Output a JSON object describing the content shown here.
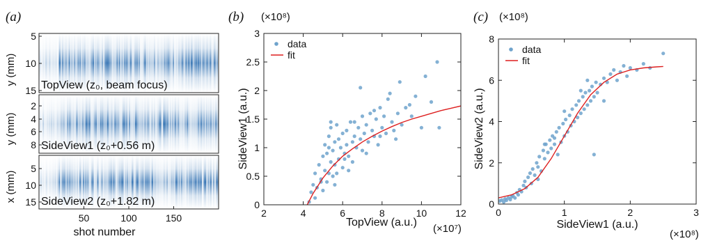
{
  "panel_labels": [
    "(a)",
    "(b)",
    "(c)"
  ],
  "colors": {
    "data": "#6fa3cc",
    "fit": "#dd1f1f",
    "map_dark": "#2166ac"
  },
  "chart_data": [
    {
      "type": "heatmap",
      "panel": "(a)",
      "xlabel": "shot number",
      "xticks": [
        "50",
        "100",
        "150"
      ],
      "xlim": [
        0,
        200
      ],
      "subplots": [
        {
          "label": "TopView (z₀, beam focus)",
          "ylabel": "y (mm)",
          "yticks": [
            "5",
            "10",
            "15"
          ],
          "ylim": [
            5,
            15
          ]
        },
        {
          "label": "SideView1 (z₀+0.56 m)",
          "ylabel": "y (mm)",
          "yticks": [
            "2",
            "4",
            "6",
            "8"
          ],
          "ylim": [
            1,
            9
          ]
        },
        {
          "label": "SideView2 (z₀+1.82 m)",
          "ylabel": "x (mm)",
          "yticks": [
            "5",
            "10",
            "15"
          ],
          "ylim": [
            1,
            18
          ]
        }
      ]
    },
    {
      "type": "scatter",
      "panel": "(b)",
      "xlabel": "TopView (a.u.)",
      "ylabel": "SideView1 (a.u.)",
      "x_exponent": "(×10⁷)",
      "y_exponent": "(×10⁸)",
      "xlim": [
        2,
        12
      ],
      "ylim": [
        0,
        3
      ],
      "xticks": [
        "2",
        "4",
        "6",
        "8",
        "10",
        "12"
      ],
      "yticks": [
        "0",
        "0.5",
        "1",
        "1.5",
        "2",
        "2.5",
        "3"
      ],
      "legend": {
        "position": "top-left",
        "entries": [
          "data",
          "fit"
        ]
      },
      "series": [
        {
          "name": "data",
          "x": [
            4.3,
            4.4,
            4.5,
            4.6,
            4.7,
            4.8,
            4.9,
            5.0,
            5.0,
            5.1,
            5.1,
            5.2,
            5.2,
            5.3,
            5.3,
            5.4,
            5.4,
            5.5,
            5.5,
            5.6,
            5.6,
            5.7,
            5.8,
            5.8,
            5.9,
            6.0,
            6.0,
            6.1,
            6.2,
            6.2,
            6.3,
            6.4,
            6.5,
            6.5,
            6.6,
            6.7,
            6.8,
            6.9,
            7.0,
            7.0,
            7.1,
            7.2,
            7.3,
            7.4,
            7.5,
            7.6,
            7.7,
            7.8,
            7.9,
            8.0,
            8.1,
            8.2,
            8.3,
            8.5,
            8.6,
            8.8,
            8.9,
            9.0,
            9.2,
            9.5,
            9.7,
            10.0,
            10.2,
            10.5,
            10.8,
            10.9,
            5.4,
            5.6,
            6.3,
            6.9,
            7.6,
            8.4,
            4.6,
            4.9,
            5.3,
            5.7,
            6.1,
            6.6,
            7.2,
            7.9,
            8.7,
            9.4
          ],
          "y": [
            0.05,
            0.22,
            0.35,
            0.55,
            0.3,
            0.7,
            0.45,
            0.85,
            0.25,
            0.6,
            1.05,
            0.4,
            0.9,
            1.2,
            0.55,
            0.75,
            1.35,
            0.95,
            0.5,
            1.1,
            0.7,
            1.4,
            0.8,
            1.15,
            1.0,
            0.65,
            1.25,
            0.9,
            1.3,
            1.05,
            0.85,
            1.45,
            1.1,
            0.75,
            1.2,
            1.0,
            1.35,
            1.15,
            1.55,
            0.95,
            1.25,
            1.4,
            1.1,
            1.6,
            1.3,
            1.2,
            1.5,
            1.05,
            1.7,
            1.35,
            1.55,
            1.25,
            1.85,
            1.45,
            1.3,
            1.6,
            2.15,
            1.4,
            1.7,
            1.55,
            1.9,
            1.35,
            2.25,
            1.8,
            2.5,
            1.35,
            1.45,
            0.35,
            0.6,
            2.05,
            1.65,
            1.95,
            0.12,
            0.4,
            1.0,
            0.55,
            0.8,
            1.45,
            0.9,
            1.2,
            1.15,
            1.75
          ]
        },
        {
          "name": "fit",
          "x": [
            4.2,
            4.5,
            5.0,
            5.5,
            6.0,
            6.5,
            7.0,
            7.5,
            8.0,
            8.5,
            9.0,
            9.5,
            10.0,
            10.5,
            11.0,
            11.5,
            12.0
          ],
          "y": [
            0.0,
            0.2,
            0.47,
            0.68,
            0.85,
            0.98,
            1.1,
            1.2,
            1.29,
            1.37,
            1.44,
            1.5,
            1.55,
            1.6,
            1.65,
            1.69,
            1.73
          ]
        }
      ]
    },
    {
      "type": "scatter",
      "panel": "(c)",
      "xlabel": "SideView1 (a.u.)",
      "ylabel": "SideView2 (a.u.)",
      "x_exponent": "(×10⁸)",
      "y_exponent": "(×10⁸)",
      "xlim": [
        0,
        3
      ],
      "ylim": [
        0,
        8
      ],
      "xticks": [
        "0",
        "1",
        "2",
        "3"
      ],
      "yticks": [
        "0",
        "2",
        "4",
        "6",
        "8"
      ],
      "legend": {
        "position": "top-left",
        "entries": [
          "data",
          "fit"
        ]
      },
      "series": [
        {
          "name": "data",
          "x": [
            0.02,
            0.05,
            0.08,
            0.1,
            0.12,
            0.15,
            0.18,
            0.2,
            0.22,
            0.25,
            0.28,
            0.3,
            0.32,
            0.35,
            0.38,
            0.4,
            0.42,
            0.45,
            0.48,
            0.5,
            0.52,
            0.55,
            0.58,
            0.6,
            0.62,
            0.65,
            0.68,
            0.7,
            0.72,
            0.75,
            0.78,
            0.8,
            0.82,
            0.85,
            0.88,
            0.9,
            0.92,
            0.95,
            0.98,
            1.0,
            1.02,
            1.05,
            1.08,
            1.1,
            1.12,
            1.15,
            1.18,
            1.2,
            1.22,
            1.25,
            1.28,
            1.3,
            1.32,
            1.35,
            1.38,
            1.4,
            1.42,
            1.45,
            1.48,
            1.5,
            1.55,
            1.6,
            1.65,
            1.7,
            1.75,
            1.8,
            1.85,
            1.9,
            1.95,
            2.0,
            2.1,
            2.2,
            2.3,
            2.5,
            0.6,
            0.7,
            0.85,
            1.0,
            1.25,
            1.35,
            1.45,
            1.6
          ],
          "y": [
            0.15,
            0.2,
            0.1,
            0.25,
            0.18,
            0.3,
            0.22,
            0.35,
            0.4,
            0.3,
            0.55,
            0.45,
            0.7,
            0.6,
            0.9,
            1.1,
            0.8,
            1.3,
            1.5,
            1.0,
            1.7,
            1.4,
            2.0,
            1.8,
            2.3,
            1.6,
            2.6,
            2.2,
            2.9,
            2.5,
            3.1,
            2.7,
            3.3,
            2.9,
            3.5,
            2.4,
            3.7,
            3.0,
            3.9,
            3.3,
            4.1,
            3.5,
            4.3,
            3.8,
            4.6,
            4.0,
            4.8,
            4.2,
            5.0,
            4.4,
            5.2,
            4.6,
            5.4,
            4.8,
            5.5,
            5.0,
            5.7,
            5.2,
            5.9,
            5.4,
            5.8,
            6.1,
            5.9,
            6.3,
            6.5,
            6.0,
            6.4,
            6.7,
            6.2,
            6.6,
            6.5,
            6.8,
            6.6,
            7.3,
            1.2,
            2.9,
            3.2,
            4.5,
            5.5,
            6.0,
            2.4,
            5.0
          ]
        },
        {
          "name": "fit",
          "x": [
            0.0,
            0.2,
            0.4,
            0.6,
            0.8,
            1.0,
            1.2,
            1.4,
            1.6,
            1.8,
            2.0,
            2.2,
            2.4,
            2.5
          ],
          "y": [
            0.3,
            0.45,
            0.75,
            1.3,
            2.2,
            3.3,
            4.4,
            5.3,
            5.9,
            6.3,
            6.5,
            6.6,
            6.65,
            6.67
          ]
        }
      ]
    }
  ]
}
